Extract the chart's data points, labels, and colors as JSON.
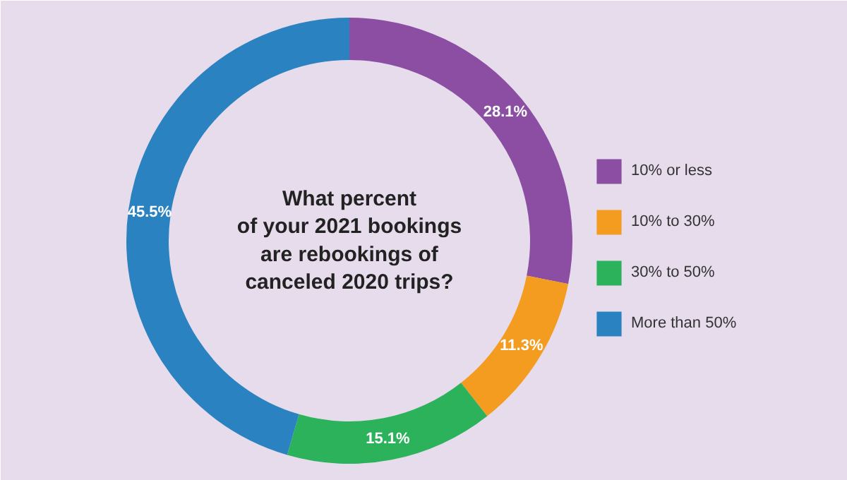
{
  "chart_data": {
    "type": "donut",
    "title": "What percent\nof your 2021 bookings\nare rebookings of\ncanceled 2020 trips?",
    "categories": [
      "10% or less",
      "10% to 30%",
      "30% to 50%",
      "More than 50%"
    ],
    "values": [
      28.1,
      11.3,
      15.1,
      45.5
    ],
    "colors": [
      "#8b4ea2",
      "#f39c1f",
      "#2bb25b",
      "#2a82c0"
    ],
    "value_labels": [
      "28.1%",
      "11.3%",
      "15.1%",
      "45.5%"
    ],
    "legend": "right"
  }
}
